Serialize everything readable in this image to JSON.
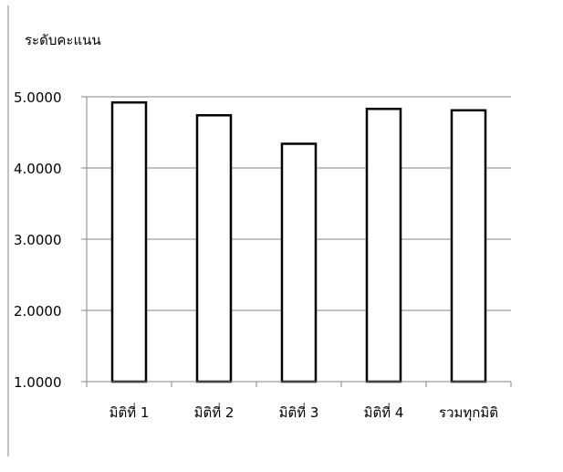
{
  "chart_data": {
    "type": "bar",
    "title": "",
    "ylabel": "ระดับคะแนน",
    "xlabel": "",
    "categories": [
      "มิติที่ 1",
      "มิติที่ 2",
      "มิติที่ 3",
      "มิติที่ 4",
      "รวมทุกมิติ"
    ],
    "values": [
      4.92,
      4.74,
      4.34,
      4.83,
      4.81
    ],
    "ylim": [
      1.0,
      5.0
    ],
    "yticks": [
      "1.0000",
      "2.0000",
      "3.0000",
      "4.0000",
      "5.0000"
    ],
    "grid": true,
    "legend": "none",
    "colors": {
      "bar_fill": "#ffffff",
      "bar_stroke": "#000000",
      "grid": "#868686",
      "axis": "#868686"
    }
  }
}
